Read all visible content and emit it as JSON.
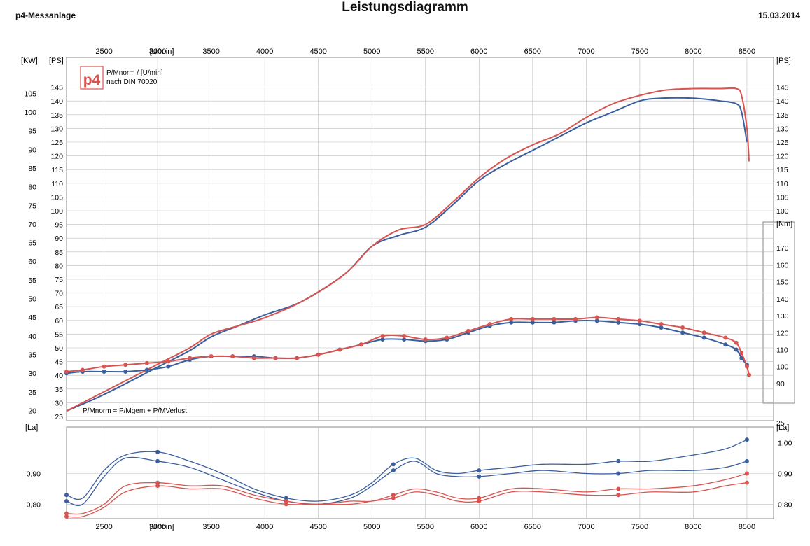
{
  "header": {
    "app_title": "p4-Messanlage",
    "date": "15.03.2014",
    "chart_title": "Leistungsdiagramm"
  },
  "legend": {
    "logo_text": "p4",
    "line1": "P/Mnorm / [U/min]",
    "line2": "nach DIN 70020",
    "formula": "P/Mnorm = P/Mgem + P/MVerlust"
  },
  "colors": {
    "blue": "#3a5f9e",
    "red": "#d9534f",
    "grid": "#bcbcbc"
  },
  "chart_data": [
    {
      "type": "line",
      "title": "Leistungsdiagramm",
      "xlabel": "[U/min]",
      "ylabel_left_kw": "[KW]",
      "ylabel_left_ps": "[PS]",
      "ylabel_right_ps": "[PS]",
      "ylabel_right_nm": "[Nm]",
      "x_ticks": [
        2500,
        3000,
        3500,
        4000,
        4500,
        5000,
        5500,
        6000,
        6500,
        7000,
        7500,
        8000,
        8500
      ],
      "x_range": [
        2150,
        8520
      ],
      "kw_ticks": [
        20,
        25,
        30,
        35,
        40,
        45,
        50,
        55,
        60,
        65,
        70,
        75,
        80,
        85,
        90,
        95,
        100,
        105
      ],
      "ps_ticks": [
        25,
        30,
        35,
        40,
        45,
        50,
        55,
        60,
        65,
        70,
        75,
        80,
        85,
        90,
        95,
        100,
        105,
        110,
        115,
        120,
        125,
        130,
        135,
        140,
        145
      ],
      "ps_right_ticks": [
        25,
        100,
        105,
        110,
        115,
        120,
        125,
        130,
        135,
        140,
        145
      ],
      "nm_ticks": [
        90,
        100,
        110,
        120,
        130,
        140,
        150,
        160,
        170
      ],
      "ps_range": [
        25,
        150
      ],
      "nm_range": [
        85,
        180
      ],
      "series": [
        {
          "key": "power-blue",
          "axis": "ps",
          "color": "blue",
          "markers": false,
          "x": [
            2150,
            2500,
            3000,
            3300,
            3500,
            3750,
            4000,
            4350,
            4750,
            5000,
            5250,
            5500,
            5750,
            6000,
            6250,
            6500,
            6750,
            7000,
            7250,
            7500,
            7700,
            8000,
            8250,
            8400,
            8450,
            8500
          ],
          "y": [
            27,
            33,
            43,
            49,
            54,
            58,
            62,
            67,
            77,
            87,
            91,
            94,
            102,
            111,
            117,
            122,
            127,
            132,
            136,
            140,
            141,
            141,
            140,
            139,
            136,
            125
          ]
        },
        {
          "key": "power-red",
          "axis": "ps",
          "color": "red",
          "markers": false,
          "x": [
            2150,
            2500,
            3000,
            3300,
            3500,
            3750,
            4000,
            4350,
            4750,
            5000,
            5250,
            5500,
            5750,
            6000,
            6250,
            6500,
            6750,
            7000,
            7250,
            7500,
            7750,
            8000,
            8250,
            8400,
            8450,
            8500,
            8520
          ],
          "y": [
            27,
            34,
            44,
            50,
            55,
            58,
            61,
            67,
            77,
            87,
            93,
            95,
            103,
            112,
            119,
            124,
            128,
            134,
            139,
            142,
            144,
            144.5,
            144.5,
            144.5,
            142,
            130,
            118
          ]
        },
        {
          "key": "torque-blue",
          "axis": "nm",
          "color": "blue",
          "markers": true,
          "x": [
            2150,
            2300,
            2500,
            2700,
            2900,
            3100,
            3300,
            3500,
            3700,
            3900,
            4100,
            4300,
            4500,
            4700,
            4900,
            5100,
            5300,
            5500,
            5700,
            5900,
            6100,
            6300,
            6500,
            6700,
            6900,
            7100,
            7300,
            7500,
            7700,
            7900,
            8100,
            8300,
            8400,
            8450,
            8500
          ],
          "y": [
            96,
            97,
            97,
            97,
            98,
            100,
            104,
            106,
            106,
            106,
            105,
            105,
            107,
            110,
            113,
            116,
            116,
            115,
            116,
            120,
            124,
            126,
            126,
            126,
            127,
            127,
            126,
            125,
            123,
            120,
            117,
            113,
            110,
            105,
            101
          ]
        },
        {
          "key": "torque-red",
          "axis": "nm",
          "color": "red",
          "markers": true,
          "x": [
            2150,
            2300,
            2500,
            2700,
            2900,
            3100,
            3300,
            3500,
            3700,
            3900,
            4100,
            4300,
            4500,
            4700,
            4900,
            5100,
            5300,
            5500,
            5700,
            5900,
            6100,
            6300,
            6500,
            6700,
            6900,
            7100,
            7300,
            7500,
            7700,
            7900,
            8100,
            8300,
            8400,
            8450,
            8500,
            8520
          ],
          "y": [
            97,
            98,
            100,
            101,
            102,
            103,
            105,
            106,
            106,
            105,
            105,
            105,
            107,
            110,
            113,
            118,
            118,
            116,
            117,
            121,
            125,
            128,
            128,
            128,
            128,
            129,
            128,
            127,
            125,
            123,
            120,
            117,
            114,
            108,
            100,
            95
          ]
        }
      ]
    },
    {
      "type": "line",
      "ylabel_left": "[La]",
      "ylabel_right": "[La]",
      "xlabel": "[U/min]",
      "x_ticks": [
        2500,
        3000,
        3500,
        4000,
        4500,
        5000,
        5500,
        6000,
        6500,
        7000,
        7500,
        8000,
        8500
      ],
      "x_range": [
        2150,
        8520
      ],
      "y_ticks_left": [
        "0,80",
        "0,90"
      ],
      "y_ticks_right": [
        "0,80",
        "0,90",
        "1,00"
      ],
      "y_range": [
        0.76,
        1.04
      ],
      "series": [
        {
          "key": "la-blue-a",
          "color": "blue",
          "x": [
            2150,
            2300,
            2500,
            2700,
            3000,
            3300,
            3600,
            3900,
            4200,
            4500,
            4800,
            5000,
            5200,
            5400,
            5600,
            5800,
            6000,
            6300,
            6600,
            7000,
            7300,
            7600,
            8000,
            8300,
            8500
          ],
          "y": [
            0.83,
            0.82,
            0.91,
            0.96,
            0.97,
            0.94,
            0.9,
            0.85,
            0.82,
            0.81,
            0.83,
            0.87,
            0.93,
            0.95,
            0.91,
            0.9,
            0.91,
            0.92,
            0.93,
            0.93,
            0.94,
            0.94,
            0.96,
            0.98,
            1.01
          ]
        },
        {
          "key": "la-blue-b",
          "color": "blue",
          "x": [
            2150,
            2300,
            2500,
            2700,
            3000,
            3300,
            3600,
            3900,
            4200,
            4500,
            4800,
            5000,
            5200,
            5400,
            5600,
            5800,
            6000,
            6300,
            6600,
            7000,
            7300,
            7600,
            8000,
            8300,
            8500
          ],
          "y": [
            0.81,
            0.8,
            0.89,
            0.95,
            0.94,
            0.92,
            0.88,
            0.84,
            0.81,
            0.8,
            0.82,
            0.86,
            0.91,
            0.94,
            0.9,
            0.89,
            0.89,
            0.9,
            0.91,
            0.9,
            0.9,
            0.91,
            0.91,
            0.92,
            0.94
          ]
        },
        {
          "key": "la-red-a",
          "color": "red",
          "x": [
            2150,
            2300,
            2500,
            2700,
            3000,
            3300,
            3600,
            3900,
            4200,
            4500,
            4800,
            5000,
            5200,
            5400,
            5600,
            5800,
            6000,
            6300,
            6600,
            7000,
            7300,
            7600,
            8000,
            8300,
            8500
          ],
          "y": [
            0.77,
            0.77,
            0.8,
            0.86,
            0.87,
            0.86,
            0.86,
            0.83,
            0.81,
            0.8,
            0.81,
            0.81,
            0.83,
            0.85,
            0.84,
            0.82,
            0.82,
            0.85,
            0.85,
            0.84,
            0.85,
            0.85,
            0.86,
            0.88,
            0.9
          ]
        },
        {
          "key": "la-red-b",
          "color": "red",
          "x": [
            2150,
            2300,
            2500,
            2700,
            3000,
            3300,
            3600,
            3900,
            4200,
            4500,
            4800,
            5000,
            5200,
            5400,
            5600,
            5800,
            6000,
            6300,
            6600,
            7000,
            7300,
            7600,
            8000,
            8300,
            8500
          ],
          "y": [
            0.76,
            0.76,
            0.79,
            0.84,
            0.86,
            0.85,
            0.85,
            0.82,
            0.8,
            0.8,
            0.8,
            0.81,
            0.82,
            0.84,
            0.83,
            0.81,
            0.81,
            0.84,
            0.84,
            0.83,
            0.83,
            0.84,
            0.84,
            0.86,
            0.87
          ]
        }
      ]
    }
  ]
}
